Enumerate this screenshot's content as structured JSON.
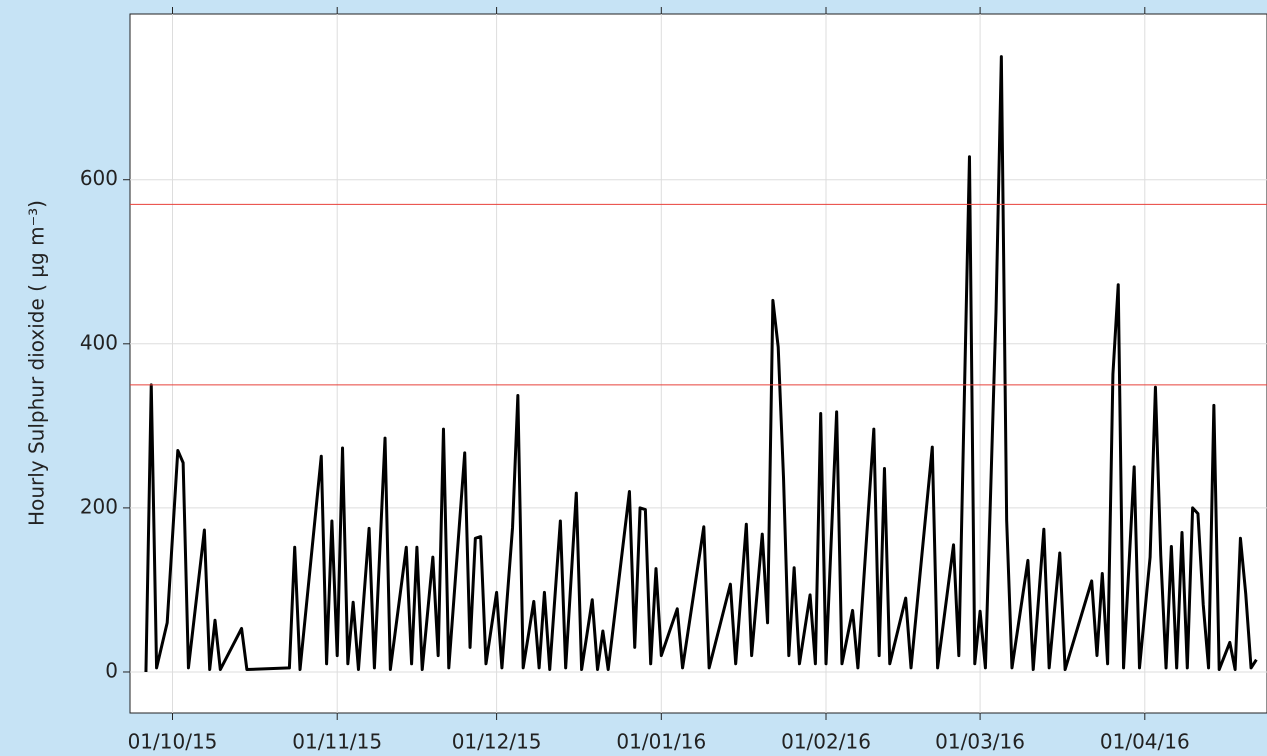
{
  "chart_data": {
    "type": "line",
    "y_label": "Hourly Sulphur dioxide ( µg m⁻³)",
    "x": [
      "2015-09-26",
      "2015-09-27",
      "2015-09-28",
      "2015-09-30",
      "2015-10-02",
      "2015-10-03",
      "2015-10-04",
      "2015-10-07",
      "2015-10-08",
      "2015-10-09",
      "2015-10-10",
      "2015-10-14",
      "2015-10-15",
      "2015-10-23",
      "2015-10-24",
      "2015-10-25",
      "2015-10-29",
      "2015-10-30",
      "2015-10-31",
      "2015-11-01",
      "2015-11-02",
      "2015-11-03",
      "2015-11-04",
      "2015-11-05",
      "2015-11-07",
      "2015-11-08",
      "2015-11-10",
      "2015-11-11",
      "2015-11-14",
      "2015-11-15",
      "2015-11-16",
      "2015-11-17",
      "2015-11-19",
      "2015-11-20",
      "2015-11-21",
      "2015-11-22",
      "2015-11-25",
      "2015-11-26",
      "2015-11-27",
      "2015-11-28",
      "2015-11-29",
      "2015-12-01",
      "2015-12-02",
      "2015-12-04",
      "2015-12-05",
      "2015-12-06",
      "2015-12-08",
      "2015-12-09",
      "2015-12-10",
      "2015-12-11",
      "2015-12-13",
      "2015-12-14",
      "2015-12-16",
      "2015-12-17",
      "2015-12-19",
      "2015-12-20",
      "2015-12-21",
      "2015-12-22",
      "2015-12-26",
      "2015-12-27",
      "2015-12-28",
      "2015-12-29",
      "2015-12-30",
      "2015-12-31",
      "2016-01-01",
      "2016-01-04",
      "2016-01-05",
      "2016-01-09",
      "2016-01-10",
      "2016-01-14",
      "2016-01-15",
      "2016-01-17",
      "2016-01-18",
      "2016-01-20",
      "2016-01-21",
      "2016-01-22",
      "2016-01-23",
      "2016-01-24",
      "2016-01-25",
      "2016-01-26",
      "2016-01-27",
      "2016-01-29",
      "2016-01-30",
      "2016-01-31",
      "2016-02-01",
      "2016-02-03",
      "2016-02-04",
      "2016-02-06",
      "2016-02-07",
      "2016-02-10",
      "2016-02-11",
      "2016-02-12",
      "2016-02-13",
      "2016-02-16",
      "2016-02-17",
      "2016-02-21",
      "2016-02-22",
      "2016-02-25",
      "2016-02-26",
      "2016-02-28",
      "2016-02-29",
      "2016-03-01",
      "2016-03-02",
      "2016-03-04",
      "2016-03-05",
      "2016-03-06",
      "2016-03-07",
      "2016-03-10",
      "2016-03-11",
      "2016-03-13",
      "2016-03-14",
      "2016-03-16",
      "2016-03-17",
      "2016-03-22",
      "2016-03-23",
      "2016-03-24",
      "2016-03-25",
      "2016-03-26",
      "2016-03-27",
      "2016-03-28",
      "2016-03-30",
      "2016-03-31",
      "2016-04-02",
      "2016-04-03",
      "2016-04-04",
      "2016-04-05",
      "2016-04-06",
      "2016-04-07",
      "2016-04-08",
      "2016-04-09",
      "2016-04-10",
      "2016-04-11",
      "2016-04-12",
      "2016-04-13",
      "2016-04-14",
      "2016-04-15",
      "2016-04-17",
      "2016-04-18",
      "2016-04-19",
      "2016-04-20",
      "2016-04-21",
      "2016-04-22"
    ],
    "values": [
      0,
      350,
      5,
      60,
      270,
      255,
      5,
      173,
      3,
      63,
      3,
      53,
      3,
      5,
      152,
      3,
      263,
      10,
      184,
      20,
      273,
      10,
      85,
      3,
      175,
      5,
      285,
      3,
      152,
      10,
      152,
      3,
      140,
      20,
      296,
      5,
      267,
      30,
      163,
      165,
      10,
      97,
      5,
      176,
      337,
      5,
      86,
      5,
      97,
      3,
      184,
      5,
      218,
      3,
      88,
      3,
      50,
      3,
      220,
      30,
      200,
      198,
      10,
      126,
      20,
      77,
      5,
      177,
      5,
      107,
      10,
      180,
      20,
      168,
      60,
      453,
      396,
      237,
      20,
      127,
      10,
      94,
      10,
      315,
      10,
      317,
      10,
      75,
      5,
      296,
      20,
      248,
      10,
      90,
      5,
      274,
      5,
      155,
      20,
      628,
      10,
      74,
      5,
      440,
      750,
      185,
      5,
      136,
      3,
      174,
      5,
      145,
      3,
      111,
      20,
      120,
      10,
      363,
      472,
      5,
      250,
      5,
      140,
      347,
      142,
      5,
      153,
      5,
      170,
      5,
      200,
      193,
      82,
      5,
      325,
      3,
      36,
      3,
      163,
      95,
      5,
      15
    ],
    "color": "#000000",
    "xlim": [
      "2015-09-23",
      "2016-04-24"
    ],
    "xticks": [
      {
        "value": "2015-10-01",
        "label": "01/10/15"
      },
      {
        "value": "2015-11-01",
        "label": "01/11/15"
      },
      {
        "value": "2015-12-01",
        "label": "01/12/15"
      },
      {
        "value": "2016-01-01",
        "label": "01/01/16"
      },
      {
        "value": "2016-02-01",
        "label": "01/02/16"
      },
      {
        "value": "2016-03-01",
        "label": "01/03/16"
      },
      {
        "value": "2016-04-01",
        "label": "01/04/16"
      }
    ],
    "ylim": [
      -50,
      802
    ],
    "yticks": [
      0,
      200,
      400,
      600
    ],
    "grid": true,
    "reference_lines": [
      350,
      570
    ],
    "reference_color": "#e8413a"
  }
}
